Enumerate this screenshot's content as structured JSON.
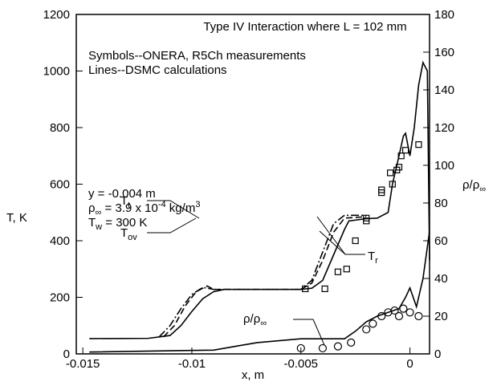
{
  "chart_data": {
    "type": "line",
    "title": "Type IV Interaction where L = 102 mm",
    "annotations": [
      [
        {
          "t": "Symbols--ONERA, R5Ch measurements"
        }
      ],
      [
        {
          "t": "Lines--DSMC calculations"
        }
      ],
      [
        {
          "t": "y = -0.004 m"
        }
      ],
      [
        {
          "t": "ρ"
        },
        {
          "t": "∞",
          "s": "sub"
        },
        {
          "t": " = 3.9 x 10"
        },
        {
          "t": "-4",
          "s": "sup"
        },
        {
          "t": " kg/m"
        },
        {
          "t": "3",
          "s": "sup"
        }
      ],
      [
        {
          "t": "T"
        },
        {
          "t": "w",
          "s": "sub"
        },
        {
          "t": " = 300 K"
        }
      ]
    ],
    "xlabel": "x, m",
    "ylabel": "T, K",
    "y2label": {
      "name": "ρ/ρ",
      "subscript": "∞"
    },
    "xlim": [
      -0.0153,
      0.0009
    ],
    "xticks": [
      -0.015,
      -0.01,
      -0.005,
      0
    ],
    "ylim": [
      0,
      1200
    ],
    "yticks": [
      0,
      200,
      400,
      600,
      800,
      1000,
      1200
    ],
    "y2lim": [
      0,
      180
    ],
    "y2ticks": [
      0,
      20,
      40,
      60,
      80,
      100,
      120,
      140,
      160,
      180
    ],
    "color": "#000000",
    "series": [
      {
        "name": "T",
        "subscript": "t",
        "type": "line",
        "style": "solid",
        "axis": "y",
        "x": [
          -0.0147,
          -0.012,
          -0.011,
          -0.0105,
          -0.01,
          -0.0095,
          -0.009,
          -0.0085,
          -0.005,
          -0.0045,
          -0.004,
          -0.0035,
          -0.003,
          -0.0028,
          -0.002,
          -0.0015,
          -0.001,
          -0.0008,
          -0.0005,
          -0.0003,
          -0.0002,
          0,
          0.0002,
          0.0004,
          0.0006,
          0.0008,
          0.0009
        ],
        "values": [
          54,
          55,
          65,
          100,
          150,
          195,
          220,
          228,
          228,
          232,
          260,
          350,
          440,
          470,
          478,
          480,
          500,
          600,
          700,
          770,
          780,
          700,
          800,
          950,
          1030,
          1000,
          330
        ]
      },
      {
        "name": "T",
        "subscript": "ov",
        "type": "line",
        "style": "dashdot",
        "axis": "y",
        "x": [
          -0.0115,
          -0.011,
          -0.0105,
          -0.01,
          -0.0095,
          -0.009,
          -0.005,
          -0.0045,
          -0.004,
          -0.0035,
          -0.003,
          -0.002
        ],
        "values": [
          60,
          100,
          160,
          210,
          235,
          228,
          228,
          260,
          360,
          460,
          490,
          490
        ]
      },
      {
        "name": "T",
        "subscript": "r",
        "type": "line",
        "style": "dashed",
        "axis": "y",
        "x": [
          -0.0113,
          -0.0108,
          -0.0103,
          -0.0098,
          -0.0093,
          -0.009,
          -0.005,
          -0.0045,
          -0.004,
          -0.0035,
          -0.003,
          -0.002
        ],
        "values": [
          60,
          100,
          170,
          220,
          240,
          228,
          228,
          250,
          330,
          430,
          480,
          485
        ]
      },
      {
        "name": "ρ/ρ",
        "subscript": "∞",
        "type": "line",
        "style": "solid",
        "axis": "y2",
        "x": [
          -0.0147,
          -0.009,
          -0.008,
          -0.007,
          -0.005,
          -0.003,
          -0.0025,
          -0.002,
          -0.0015,
          -0.001,
          -0.0005,
          -0.0002,
          0,
          0.0003,
          0.0006,
          0.0009
        ],
        "values": [
          1,
          2,
          4,
          6,
          8,
          8,
          12,
          17,
          20,
          22,
          24,
          30,
          35,
          25,
          40,
          65
        ]
      },
      {
        "type": "scatter",
        "marker": "square",
        "axis": "y",
        "x": [
          -0.0048,
          -0.0039,
          -0.0033,
          -0.0029,
          -0.0025,
          -0.002,
          -0.002,
          -0.0013,
          -0.0013,
          -0.0008,
          -0.0009,
          -0.0006,
          -0.0005,
          -0.0004,
          -0.0002,
          0.0004
        ],
        "values": [
          230,
          230,
          290,
          300,
          400,
          480,
          470,
          570,
          580,
          600,
          640,
          650,
          660,
          700,
          720,
          740
        ]
      },
      {
        "type": "scatter",
        "marker": "circle",
        "axis": "y2",
        "x": [
          -0.005,
          -0.004,
          -0.0033,
          -0.0027,
          -0.002,
          -0.0017,
          -0.0013,
          -0.001,
          -0.0007,
          -0.0005,
          -0.0003,
          0,
          0.0004
        ],
        "values": [
          3,
          3,
          4,
          6,
          13,
          16,
          20,
          22,
          23,
          20,
          24,
          22,
          20
        ]
      }
    ]
  }
}
